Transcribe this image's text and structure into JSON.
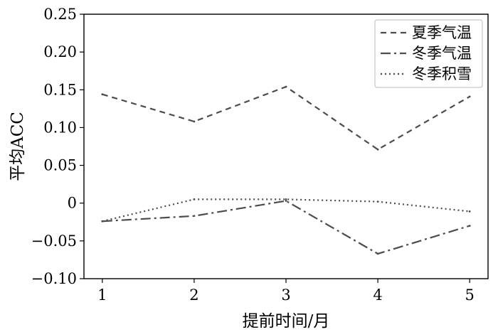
{
  "chart_data": {
    "type": "line",
    "xlabel": "提前时间/月",
    "ylabel": "平均ACC",
    "x": [
      1,
      2,
      3,
      4,
      5
    ],
    "xlim": [
      0.8,
      5.2
    ],
    "ylim": [
      -0.1,
      0.25
    ],
    "x_ticks": [
      "1",
      "2",
      "3",
      "4",
      "5"
    ],
    "y_ticks": [
      {
        "value": -0.1,
        "label": "−0.10"
      },
      {
        "value": -0.05,
        "label": "−0.05"
      },
      {
        "value": 0,
        "label": "0"
      },
      {
        "value": 0.05,
        "label": "0.05"
      },
      {
        "value": 0.1,
        "label": "0.10"
      },
      {
        "value": 0.15,
        "label": "0.15"
      },
      {
        "value": 0.2,
        "label": "0.20"
      },
      {
        "value": 0.25,
        "label": "0.25"
      }
    ],
    "grid": false,
    "legend_position": "top-right",
    "series": [
      {
        "name": "夏季气温",
        "values": [
          0.144,
          0.108,
          0.154,
          0.071,
          0.141
        ],
        "dash": "8,6"
      },
      {
        "name": "冬季气温",
        "values": [
          -0.024,
          -0.017,
          0.003,
          -0.067,
          -0.03
        ],
        "dash": "14,5,3,5"
      },
      {
        "name": "冬季积雪",
        "values": [
          -0.024,
          0.005,
          0.005,
          0.002,
          -0.011
        ],
        "dash": "2,4"
      }
    ],
    "line_color": "#504a4c"
  }
}
